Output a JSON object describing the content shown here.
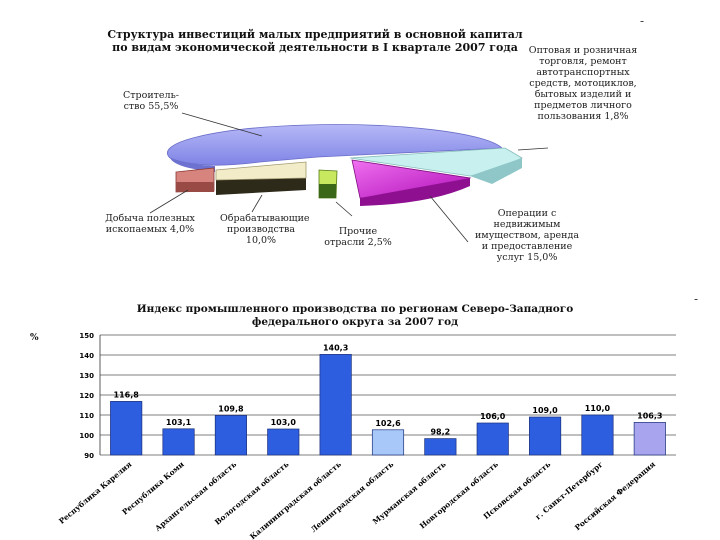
{
  "pie": {
    "title": "Структура инвестиций малых предприятий в основной капитал по видам экономической деятельности в I квартале 2007 года",
    "labels": {
      "construction": "Строитель-ство 55,5%",
      "trade": "Оптовая и розничная торговля, ремонт автотранспортных средств, мотоциклов, бытовых изделий и предметов личного пользования 1,8%",
      "real_estate": "Операции с недвижимым имуществом, аренда и предоставление услуг 15,0%",
      "other": "Прочие отрасли 2,5%",
      "manufacturing": "Обрабатывающие производства 10,0%",
      "mining": "Добыча полезных ископаемых 4,0%"
    }
  },
  "bars": {
    "title": "Индекс промышленного производства по регионам Северо-Западного федерального округа за 2007 год",
    "unit": "%"
  },
  "chart_data": [
    {
      "type": "pie",
      "title": "Структура инвестиций малых предприятий в основной капитал по видам экономической деятельности в I квартале 2007 года",
      "categories": [
        "Строительство",
        "Оптовая и розничная торговля, ремонт автотранспортных средств, мотоциклов, бытовых изделий и предметов личного пользования",
        "Операции с недвижимым имуществом, аренда и предоставление услуг",
        "Прочие отрасли",
        "Обрабатывающие производства",
        "Добыча полезных ископаемых"
      ],
      "values": [
        55.5,
        1.8,
        15.0,
        2.5,
        10.0,
        4.0
      ],
      "colors": [
        "#9a9ef0",
        "#b9ecec",
        "#cc22cc",
        "#c8e860",
        "#f2edc8",
        "#d8847e"
      ]
    },
    {
      "type": "bar",
      "title": "Индекс промышленного производства по регионам Северо-Западного федерального округа за 2007 год",
      "ylabel": "%",
      "ylim": [
        90,
        150
      ],
      "yticks": [
        90,
        100,
        110,
        120,
        130,
        140,
        150
      ],
      "categories": [
        "Республика Карелия",
        "Республика Коми",
        "Архангельская область",
        "Вологодская область",
        "Калининградская область",
        "Ленинградская область",
        "Мурманская область",
        "Новгородская область",
        "Псковская область",
        "г. Санкт-Петербург",
        "Российская Федерация"
      ],
      "values": [
        116.8,
        103.1,
        109.8,
        103.0,
        140.3,
        102.6,
        98.2,
        106.0,
        109.0,
        110.0,
        106.3
      ],
      "value_labels": [
        "116,8",
        "103,1",
        "109,8",
        "103,0",
        "140,3",
        "102,6",
        "98,2",
        "106,0",
        "109,0",
        "110,0",
        "106,3"
      ],
      "highlight": {
        "Ленинградская область": "light-blue",
        "Российская Федерация": "lavender"
      },
      "colors": {
        "default": "#2e5ee0",
        "light": "#a8c8fa",
        "lavender": "#a8a4ee"
      },
      "grid": true
    }
  ]
}
